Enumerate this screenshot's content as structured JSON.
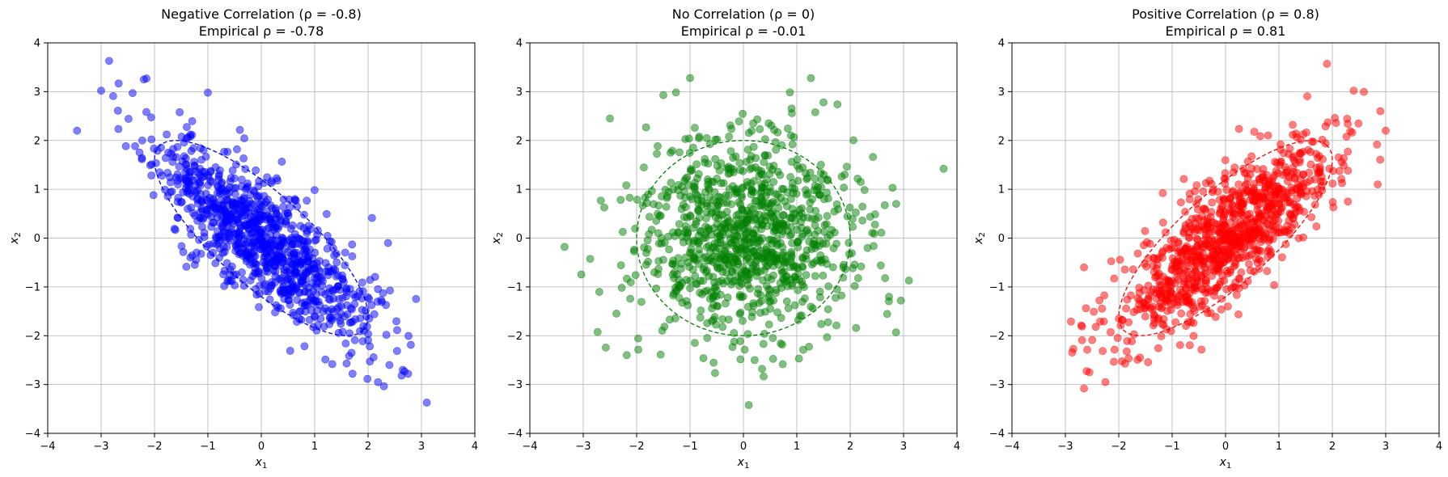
{
  "chart_data": [
    {
      "type": "scatter",
      "title_line1": "Negative Correlation (ρ = -0.8)",
      "title_line2": "Empirical ρ = -0.78",
      "xlabel": "x",
      "xlabel_sub": "1",
      "ylabel": "x",
      "ylabel_sub": "2",
      "xlim": [
        -4,
        4
      ],
      "ylim": [
        -4,
        4
      ],
      "xticks": [
        -4,
        -3,
        -2,
        -1,
        0,
        1,
        2,
        3,
        4
      ],
      "yticks": [
        -4,
        -3,
        -2,
        -1,
        0,
        1,
        2,
        3,
        4
      ],
      "grid": true,
      "point_color": "#0000ff",
      "rho": -0.8,
      "n_points": 1000,
      "seed": 11,
      "ellipse": {
        "style": "dashed",
        "color": "#0000ff",
        "sigma": 2
      },
      "outliers": [
        [
          -2.85,
          3.63
        ],
        [
          -2.15,
          3.27
        ],
        [
          -2.2,
          3.25
        ],
        [
          -3.0,
          3.02
        ],
        [
          -3.45,
          2.2
        ],
        [
          3.1,
          -3.37
        ],
        [
          2.75,
          -2.78
        ],
        [
          2.65,
          -2.7
        ],
        [
          2.4,
          -2.6
        ],
        [
          -1.0,
          2.98
        ]
      ]
    },
    {
      "type": "scatter",
      "title_line1": "No Correlation (ρ = 0)",
      "title_line2": "Empirical ρ = -0.01",
      "xlabel": "x",
      "xlabel_sub": "1",
      "ylabel": "x",
      "ylabel_sub": "2",
      "xlim": [
        -4,
        4
      ],
      "ylim": [
        -4,
        4
      ],
      "xticks": [
        -4,
        -3,
        -2,
        -1,
        0,
        1,
        2,
        3,
        4
      ],
      "yticks": [
        -4,
        -3,
        -2,
        -1,
        0,
        1,
        2,
        3,
        4
      ],
      "grid": true,
      "point_color": "#008000",
      "rho": 0,
      "n_points": 1000,
      "seed": 23,
      "ellipse": {
        "style": "dashed",
        "color": "#008000",
        "sigma": 2
      },
      "outliers": [
        [
          -1.0,
          3.28
        ],
        [
          0.1,
          -3.42
        ],
        [
          3.75,
          1.42
        ],
        [
          -3.35,
          -0.18
        ],
        [
          3.1,
          -0.87
        ],
        [
          2.95,
          -1.28
        ],
        [
          -1.5,
          2.93
        ],
        [
          1.5,
          2.78
        ],
        [
          0.35,
          -2.68
        ],
        [
          -2.5,
          2.45
        ]
      ]
    },
    {
      "type": "scatter",
      "title_line1": "Positive Correlation (ρ = 0.8)",
      "title_line2": "Empirical ρ = 0.81",
      "xlabel": "x",
      "xlabel_sub": "1",
      "ylabel": "x",
      "ylabel_sub": "2",
      "xlim": [
        -4,
        4
      ],
      "ylim": [
        -4,
        4
      ],
      "xticks": [
        -4,
        -3,
        -2,
        -1,
        0,
        1,
        2,
        3,
        4
      ],
      "yticks": [
        -4,
        -3,
        -2,
        -1,
        0,
        1,
        2,
        3,
        4
      ],
      "grid": true,
      "point_color": "#ff0000",
      "rho": 0.8,
      "n_points": 1000,
      "seed": 37,
      "ellipse": {
        "style": "dashed",
        "color": "#ff0000",
        "sigma": 2
      },
      "outliers": [
        [
          1.9,
          3.57
        ],
        [
          2.4,
          3.02
        ],
        [
          2.9,
          2.6
        ],
        [
          3.0,
          2.2
        ],
        [
          -2.65,
          -3.08
        ],
        [
          -2.25,
          -2.95
        ],
        [
          -2.55,
          -2.75
        ],
        [
          -2.85,
          -2.27
        ],
        [
          2.85,
          1.1
        ],
        [
          -2.65,
          -0.6
        ]
      ]
    }
  ]
}
